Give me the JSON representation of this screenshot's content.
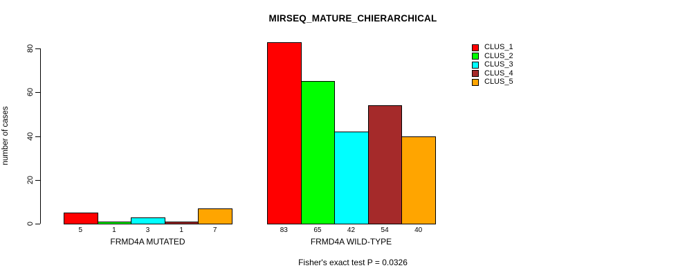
{
  "chart_data": {
    "type": "bar",
    "title": "MIRSEQ_MATURE_CHIERARCHICAL",
    "ylabel": "number of cases",
    "xlabel": "",
    "footer": "Fisher's exact test P = 0.0326",
    "ylim": [
      0,
      80
    ],
    "yticks": [
      0,
      20,
      40,
      60,
      80
    ],
    "grid": false,
    "bar_value_labels_shown": true,
    "categories": [
      "FRMD4A MUTATED",
      "FRMD4A WILD-TYPE"
    ],
    "groups": [
      {
        "label": "FRMD4A MUTATED",
        "values": [
          5,
          1,
          3,
          1,
          7
        ]
      },
      {
        "label": "FRMD4A WILD-TYPE",
        "values": [
          83,
          65,
          42,
          54,
          40
        ]
      }
    ],
    "series": [
      {
        "name": "CLUS_1",
        "color": "#FF0000",
        "values": [
          5,
          83
        ]
      },
      {
        "name": "CLUS_2",
        "color": "#00FF00",
        "values": [
          1,
          65
        ]
      },
      {
        "name": "CLUS_3",
        "color": "#00FFFF",
        "values": [
          3,
          42
        ]
      },
      {
        "name": "CLUS_4",
        "color": "#A52A2A",
        "values": [
          1,
          54
        ]
      },
      {
        "name": "CLUS_5",
        "color": "#FFA500",
        "values": [
          7,
          40
        ]
      }
    ],
    "legend": {
      "position": "right",
      "entries": [
        {
          "label": "CLUS_1",
          "color": "#FF0000"
        },
        {
          "label": "CLUS_2",
          "color": "#00FF00"
        },
        {
          "label": "CLUS_3",
          "color": "#00FFFF"
        },
        {
          "label": "CLUS_4",
          "color": "#A52A2A"
        },
        {
          "label": "CLUS_5",
          "color": "#FFA500"
        }
      ]
    }
  }
}
